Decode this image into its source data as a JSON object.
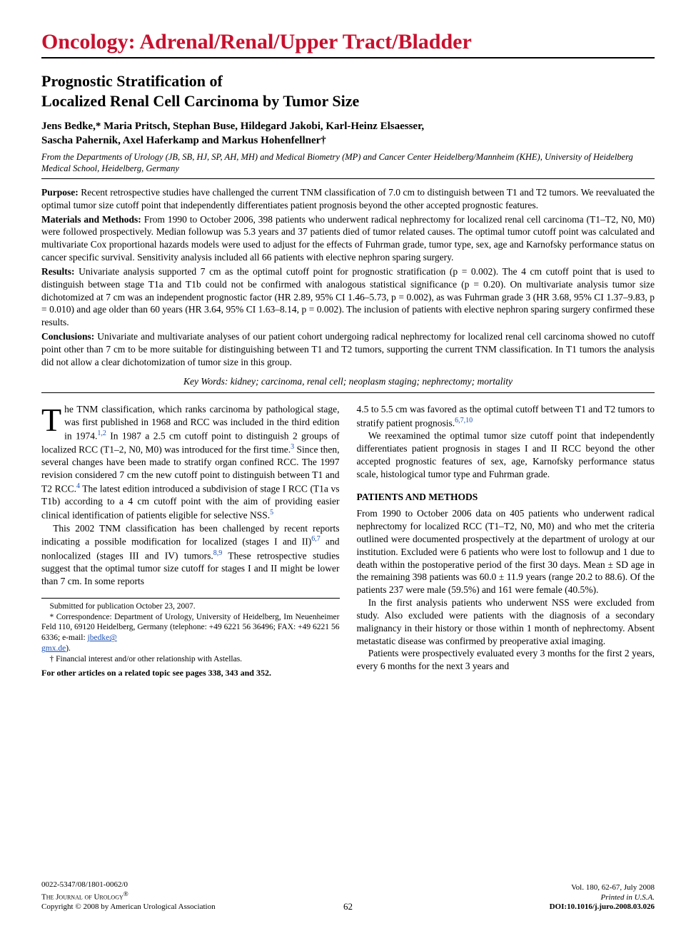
{
  "colors": {
    "section_header": "#c8102e",
    "text": "#000000",
    "link": "#1a4fb3",
    "background": "#ffffff"
  },
  "typography": {
    "section_header_size": 30,
    "title_size": 22,
    "author_size": 15,
    "body_size": 13.5,
    "footnote_size": 11.5,
    "footer_size": 11
  },
  "header": {
    "section": "Oncology: Adrenal/Renal/Upper Tract/Bladder"
  },
  "article": {
    "title_line1": "Prognostic Stratification of",
    "title_line2": "Localized Renal Cell Carcinoma by Tumor Size",
    "authors_line1": "Jens Bedke,* Maria Pritsch, Stephan Buse, Hildegard Jakobi, Karl-Heinz Elsaesser,",
    "authors_line2": "Sascha Pahernik, Axel Haferkamp and Markus Hohenfellner†",
    "affiliation": "From the Departments of Urology (JB, SB, HJ, SP, AH, MH) and Medical Biometry (MP) and Cancer Center Heidelberg/Mannheim (KHE), University of Heidelberg Medical School, Heidelberg, Germany"
  },
  "abstract": {
    "purpose_label": "Purpose:",
    "purpose": " Recent retrospective studies have challenged the current TNM classification of 7.0 cm to distinguish between T1 and T2 tumors. We reevaluated the optimal tumor size cutoff point that independently differentiates patient prognosis beyond the other accepted prognostic features.",
    "methods_label": "Materials and Methods:",
    "methods": " From 1990 to October 2006, 398 patients who underwent radical nephrectomy for localized renal cell carcinoma (T1–T2, N0, M0) were followed prospectively. Median followup was 5.3 years and 37 patients died of tumor related causes. The optimal tumor cutoff point was calculated and multivariate Cox proportional hazards models were used to adjust for the effects of Fuhrman grade, tumor type, sex, age and Karnofsky performance status on cancer specific survival. Sensitivity analysis included all 66 patients with elective nephron sparing surgery.",
    "results_label": "Results:",
    "results": " Univariate analysis supported 7 cm as the optimal cutoff point for prognostic stratification (p = 0.002). The 4 cm cutoff point that is used to distinguish between stage T1a and T1b could not be confirmed with analogous statistical significance (p = 0.20). On multivariate analysis tumor size dichotomized at 7 cm was an independent prognostic factor (HR 2.89, 95% CI 1.46–5.73, p = 0.002), as was Fuhrman grade 3 (HR 3.68, 95% CI 1.37–9.83, p = 0.010) and age older than 60 years (HR 3.64, 95% CI 1.63–8.14, p = 0.002). The inclusion of patients with elective nephron sparing surgery confirmed these results.",
    "conclusions_label": "Conclusions:",
    "conclusions": " Univariate and multivariate analyses of our patient cohort undergoing radical nephrectomy for localized renal cell carcinoma showed no cutoff point other than 7 cm to be more suitable for distinguishing between T1 and T2 tumors, supporting the current TNM classification. In T1 tumors the analysis did not allow a clear dichotomization of tumor size in this group.",
    "keywords": "Key Words: kidney; carcinoma, renal cell; neoplasm staging; nephrectomy; mortality"
  },
  "body": {
    "left": {
      "p1a": "he TNM classification, which ranks carcinoma by pathological stage, was first published in 1968 and RCC was included in the third edition in 1974.",
      "p1b": " In 1987 a 2.5 cm cutoff point to distinguish 2 groups of localized RCC (T1–2, N0, M0) was introduced for the first time.",
      "p1c": " Since then, several changes have been made to stratify organ confined RCC. The 1997 revision considered 7 cm the new cutoff point to distinguish between T1 and T2 RCC.",
      "p1d": " The latest edition introduced a subdivision of stage I RCC (T1a vs T1b) according to a 4 cm cutoff point with the aim of providing easier clinical identification of patients eligible for selective NSS.",
      "p2a": "This 2002 TNM classification has been challenged by recent reports indicating a possible modification for localized (stages I and II)",
      "p2b": " and nonlocalized (stages III and IV) tumors.",
      "p2c": " These retrospective studies suggest that the optimal tumor size cutoff for stages I and II might be lower than 7 cm. In some reports",
      "refs": {
        "r12": "1,2",
        "r3": "3",
        "r4": "4",
        "r5": "5",
        "r67": "6,7",
        "r89": "8,9",
        "r6710": "6,7,10"
      }
    },
    "right": {
      "p1": "4.5 to 5.5 cm was favored as the optimal cutoff between T1 and T2 tumors to stratify patient prognosis.",
      "p2": "We reexamined the optimal tumor size cutoff point that independently differentiates patient prognosis in stages I and II RCC beyond the other accepted prognostic features of sex, age, Karnofsky performance status scale, histological tumor type and Fuhrman grade.",
      "methods_head": "PATIENTS AND METHODS",
      "p3": "From 1990 to October 2006 data on 405 patients who underwent radical nephrectomy for localized RCC (T1–T2, N0, M0) and who met the criteria outlined were documented prospectively at the department of urology at our institution. Excluded were 6 patients who were lost to followup and 1 due to death within the postoperative period of the first 30 days. Mean ± SD age in the remaining 398 patients was 60.0 ± 11.9 years (range 20.2 to 88.6). Of the patients 237 were male (59.5%) and 161 were female (40.5%).",
      "p4": "In the first analysis patients who underwent NSS were excluded from study. Also excluded were patients with the diagnosis of a secondary malignancy in their history or those within 1 month of nephrectomy. Absent metastatic disease was confirmed by preoperative axial imaging.",
      "p5": "Patients were prospectively evaluated every 3 months for the first 2 years, every 6 months for the next 3 years and"
    }
  },
  "footnotes": {
    "submitted": "Submitted for publication October 23, 2007.",
    "correspondence": "* Correspondence: Department of Urology, University of Heidelberg, Im Neuenheimer Feld 110, 69120 Heidelberg, Germany (telephone: +49 6221 56 36496; FAX: +49 6221 56 6336; e-mail: ",
    "email1": "jbedke@",
    "email2": "gmx.de",
    "email_close": ").",
    "dagger": "† Financial interest and/or other relationship with Astellas.",
    "related": "For other articles on a related topic see pages 338, 343 and 352."
  },
  "footer": {
    "issn": "0022-5347/08/1801-0062/0",
    "journal": "The Journal of Urology",
    "reg": "®",
    "copyright": "Copyright © 2008 by American Urological Association",
    "page": "62",
    "volume": "Vol. 180, 62-67, July 2008",
    "printed": "Printed in U.S.A.",
    "doi_label": "DOI:",
    "doi": "10.1016/j.juro.2008.03.026"
  }
}
